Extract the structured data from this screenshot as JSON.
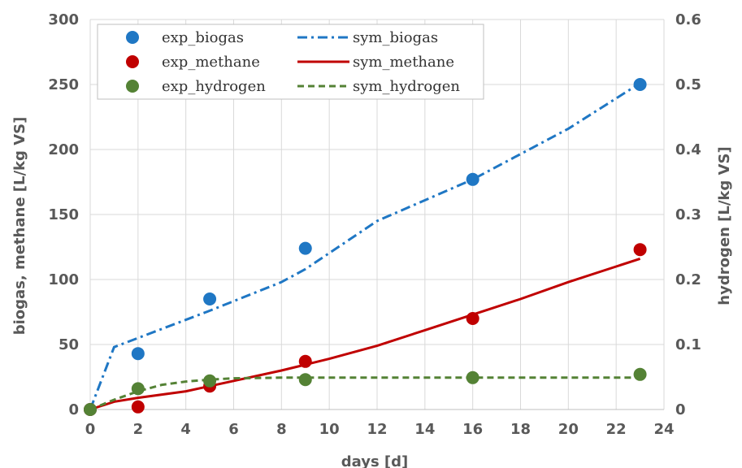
{
  "chart_data": {
    "type": "scatter",
    "xlabel": "days [d]",
    "ylabel": "biogas, methane [L/kg VS]",
    "y2label": "hydrogen [L/kg VS]",
    "xlim": [
      0,
      24
    ],
    "ylim": [
      0,
      300
    ],
    "y2lim": [
      0,
      0.6
    ],
    "xticks": [
      "0",
      "2",
      "4",
      "6",
      "8",
      "10",
      "12",
      "14",
      "16",
      "18",
      "20",
      "22",
      "24"
    ],
    "yticks": [
      "0",
      "50",
      "100",
      "150",
      "200",
      "250",
      "300"
    ],
    "y2ticks": [
      "0",
      "0.1",
      "0.2",
      "0.3",
      "0.4",
      "0.5",
      "0.6"
    ],
    "grid": true,
    "legend_position": "top-left",
    "series": [
      {
        "name": "exp_biogas",
        "kind": "markers",
        "axis": "left",
        "color": "#1f77c4",
        "x": [
          0,
          2,
          5,
          9,
          16,
          23
        ],
        "y": [
          0,
          43,
          85,
          124,
          177,
          250
        ]
      },
      {
        "name": "exp_methane",
        "kind": "markers",
        "axis": "left",
        "color": "#c00000",
        "x": [
          0,
          2,
          5,
          9,
          16,
          23
        ],
        "y": [
          0,
          2,
          18,
          37,
          70,
          123
        ]
      },
      {
        "name": "exp_hydrogen",
        "kind": "markers",
        "axis": "right",
        "color": "#548235",
        "x": [
          0,
          2,
          5,
          9,
          16,
          23
        ],
        "y": [
          0,
          0.032,
          0.044,
          0.046,
          0.049,
          0.054
        ]
      },
      {
        "name": "sym_biogas",
        "kind": "line",
        "dash": "dashdot",
        "axis": "left",
        "color": "#1f77c4",
        "x": [
          0,
          1,
          2,
          5,
          8,
          9,
          12,
          16,
          20,
          23
        ],
        "y": [
          0,
          48,
          55,
          76,
          98,
          108,
          145,
          177,
          216,
          251
        ]
      },
      {
        "name": "sym_methane",
        "kind": "line",
        "dash": "solid",
        "axis": "left",
        "color": "#c00000",
        "x": [
          0,
          1,
          2,
          4,
          5,
          6,
          8,
          10,
          12,
          14,
          16,
          18,
          20,
          22,
          23
        ],
        "y": [
          0,
          6,
          9,
          14,
          18,
          22,
          30,
          39,
          49,
          61,
          73,
          85,
          98,
          110,
          116
        ]
      },
      {
        "name": "sym_hydrogen",
        "kind": "line",
        "dash": "dashed",
        "axis": "right",
        "color": "#548235",
        "x": [
          0,
          1,
          2,
          3,
          4,
          5,
          6,
          8,
          10,
          16,
          23
        ],
        "y": [
          0,
          0.015,
          0.028,
          0.038,
          0.043,
          0.046,
          0.048,
          0.049,
          0.049,
          0.049,
          0.049
        ]
      }
    ]
  }
}
